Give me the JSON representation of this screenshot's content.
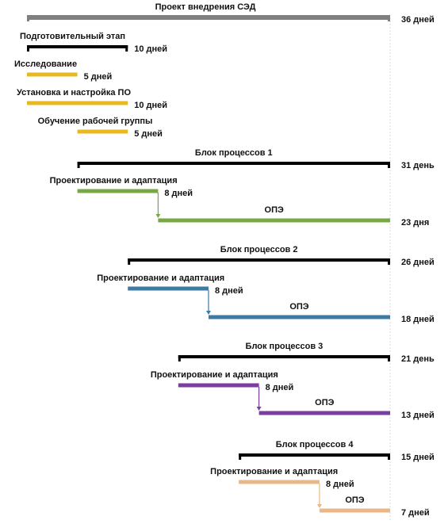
{
  "chart_data": {
    "type": "gantt",
    "time_unit": "дни",
    "total_days": 36,
    "grid": false,
    "colors": {
      "project": "#808080",
      "summary": "#000000",
      "preparation": "#e8b820",
      "block1": "#77a844",
      "block2": "#3d7aa6",
      "block3": "#7a3ea0",
      "block4": "#e8b888",
      "text": "#111111"
    },
    "tasks": [
      {
        "id": "project",
        "name": "Проект внедрения СЭД",
        "duration_label": "36 дней",
        "start": 0,
        "end": 36,
        "style": "project",
        "color_key": "project"
      },
      {
        "id": "prep",
        "name": "Подготовительный этап",
        "duration_label": "10 дней",
        "start": 0,
        "end": 10,
        "style": "summary",
        "color_key": "summary"
      },
      {
        "id": "research",
        "name": "Исследование",
        "duration_label": "5 дней",
        "start": 0,
        "end": 5,
        "style": "task",
        "color_key": "preparation"
      },
      {
        "id": "install",
        "name": "Установка и настройка ПО",
        "duration_label": "10 дней",
        "start": 0,
        "end": 10,
        "style": "task",
        "color_key": "preparation"
      },
      {
        "id": "training",
        "name": "Обучение рабочей группы",
        "duration_label": "5 дней",
        "start": 5,
        "end": 10,
        "style": "task",
        "color_key": "preparation"
      },
      {
        "id": "block1",
        "name": "Блок процессов 1",
        "duration_label": "31 день",
        "start": 5,
        "end": 36,
        "style": "summary",
        "color_key": "summary"
      },
      {
        "id": "b1_design",
        "name": "Проектирование и адаптация",
        "duration_label": "8 дней",
        "start": 5,
        "end": 13,
        "style": "task",
        "color_key": "block1"
      },
      {
        "id": "b1_ope",
        "name": "ОПЭ",
        "duration_label": "23 дня",
        "start": 13,
        "end": 36,
        "style": "task",
        "color_key": "block1",
        "depends_on": "b1_design"
      },
      {
        "id": "block2",
        "name": "Блок процессов 2",
        "duration_label": "26 дней",
        "start": 10,
        "end": 36,
        "style": "summary",
        "color_key": "summary"
      },
      {
        "id": "b2_design",
        "name": "Проектирование и адаптация",
        "duration_label": "8 дней",
        "start": 10,
        "end": 18,
        "style": "task",
        "color_key": "block2"
      },
      {
        "id": "b2_ope",
        "name": "ОПЭ",
        "duration_label": "18 дней",
        "start": 18,
        "end": 36,
        "style": "task",
        "color_key": "block2",
        "depends_on": "b2_design"
      },
      {
        "id": "block3",
        "name": "Блок процессов 3",
        "duration_label": "21 день",
        "start": 15,
        "end": 36,
        "style": "summary",
        "color_key": "summary"
      },
      {
        "id": "b3_design",
        "name": "Проектирование и адаптация",
        "duration_label": "8 дней",
        "start": 15,
        "end": 23,
        "style": "task",
        "color_key": "block3"
      },
      {
        "id": "b3_ope",
        "name": "ОПЭ",
        "duration_label": "13 дней",
        "start": 23,
        "end": 36,
        "style": "task",
        "color_key": "block3",
        "depends_on": "b3_design"
      },
      {
        "id": "block4",
        "name": "Блок процессов 4",
        "duration_label": "15 дней",
        "start": 21,
        "end": 36,
        "style": "summary",
        "color_key": "summary"
      },
      {
        "id": "b4_design",
        "name": "Проектирование и адаптация",
        "duration_label": "8 дней",
        "start": 21,
        "end": 29,
        "style": "task",
        "color_key": "block4"
      },
      {
        "id": "b4_ope",
        "name": "ОПЭ",
        "duration_label": "7 дней",
        "start": 29,
        "end": 36,
        "style": "task",
        "color_key": "block4",
        "depends_on": "b4_design"
      }
    ]
  }
}
